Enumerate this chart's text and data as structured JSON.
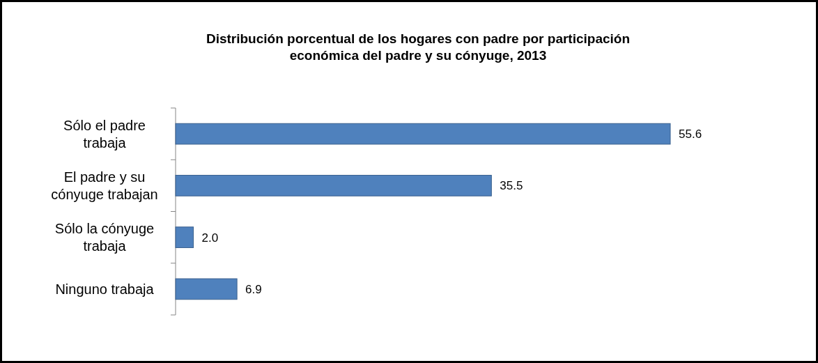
{
  "chart_data": {
    "type": "bar",
    "orientation": "horizontal",
    "title": "Distribución porcentual de los hogares con padre por participación\neconómica del padre y su cónyuge, 2013",
    "categories": [
      "Sólo el padre\ntrabaja",
      "El padre y su\ncónyuge trabajan",
      "Sólo la cónyuge\ntrabaja",
      "Ninguno trabaja"
    ],
    "values": [
      55.6,
      35.5,
      2.0,
      6.9
    ],
    "value_labels": [
      "55.6",
      "35.5",
      "2.0",
      "6.9"
    ],
    "color": "#4f81bd"
  }
}
